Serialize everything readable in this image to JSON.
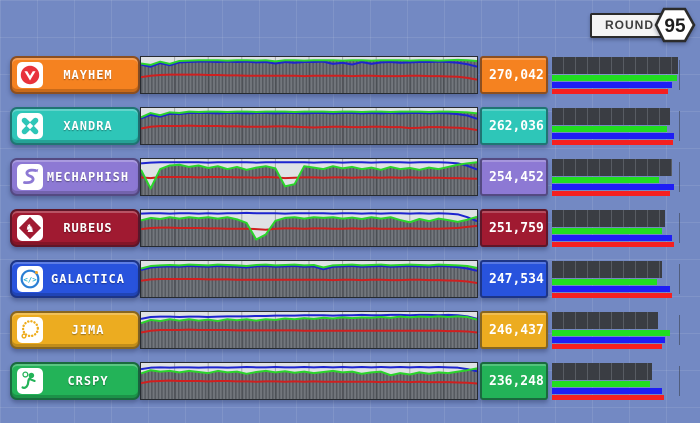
{
  "round_badge": {
    "label": "ROUND",
    "number": "95"
  },
  "colors": {
    "background": "#7389c3",
    "bar_green": "#21dd21",
    "bar_blue": "#1e1ef5",
    "bar_red": "#f52020",
    "chart_line_green": "#2bd42b",
    "chart_line_blue": "#1d24cf",
    "chart_line_red": "#cf1f1f"
  },
  "teams": [
    {
      "name": "MAYHEM",
      "score": "270,042",
      "color": "#f58220",
      "icon": "mayhem-bird-v-icon",
      "bars": {
        "dark": 100,
        "green": 99,
        "blue": 95,
        "red": 92
      },
      "chart": {
        "green": [
          18,
          22,
          13,
          19,
          11,
          10,
          9,
          9,
          9,
          10,
          9,
          9,
          10,
          9,
          12,
          9,
          9,
          10,
          9,
          9,
          9,
          10,
          9,
          9,
          10,
          9,
          9,
          9,
          10,
          9,
          9,
          10,
          9,
          8,
          9,
          11
        ],
        "blue": [
          21,
          27,
          17,
          23,
          15,
          14,
          13,
          13,
          14,
          13,
          14,
          13,
          15,
          14,
          18,
          14,
          16,
          14,
          14,
          13,
          19,
          16,
          21,
          14,
          19,
          15,
          14,
          16,
          15,
          14,
          14,
          13,
          14,
          16,
          20,
          27
        ],
        "red": [
          56,
          52,
          50,
          49,
          49,
          49,
          49,
          50,
          50,
          51,
          51,
          52,
          52,
          52,
          52,
          52,
          52,
          53,
          52,
          52,
          52,
          52,
          53,
          52,
          52,
          53,
          53,
          53,
          52,
          52,
          53,
          53,
          54,
          55,
          58,
          63
        ]
      }
    },
    {
      "name": "XANDRA",
      "score": "262,036",
      "color": "#2ec6b8",
      "icon": "xandra-cross-x-icon",
      "bars": {
        "dark": 94,
        "green": 91,
        "blue": 97,
        "red": 96
      },
      "chart": {
        "green": [
          26,
          14,
          20,
          12,
          14,
          10,
          11,
          10,
          10,
          11,
          10,
          10,
          11,
          10,
          10,
          10,
          11,
          10,
          10,
          10,
          11,
          10,
          10,
          11,
          10,
          10,
          11,
          10,
          10,
          10,
          11,
          10,
          10,
          11,
          12,
          15
        ],
        "blue": [
          29,
          19,
          24,
          16,
          17,
          14,
          14,
          14,
          15,
          14,
          14,
          15,
          14,
          14,
          15,
          14,
          14,
          15,
          14,
          14,
          15,
          14,
          14,
          15,
          14,
          15,
          14,
          15,
          14,
          14,
          15,
          14,
          15,
          17,
          21,
          30
        ],
        "red": [
          57,
          52,
          50,
          50,
          50,
          49,
          50,
          50,
          50,
          51,
          51,
          52,
          52,
          52,
          51,
          51,
          52,
          53,
          54,
          53,
          52,
          52,
          53,
          53,
          52,
          52,
          53,
          53,
          56,
          55,
          53,
          53,
          54,
          55,
          57,
          61
        ]
      }
    },
    {
      "name": "MECHAPHISH",
      "score": "254,452",
      "color": "#8d79d4",
      "icon": "mechaphish-fish-s-icon",
      "bars": {
        "dark": 95,
        "green": 85,
        "blue": 97,
        "red": 94
      },
      "chart": {
        "green": [
          30,
          82,
          28,
          18,
          16,
          22,
          18,
          25,
          20,
          28,
          22,
          30,
          24,
          20,
          26,
          76,
          70,
          20,
          24,
          28,
          20,
          26,
          22,
          28,
          24,
          30,
          22,
          28,
          25,
          30,
          24,
          28,
          22,
          16,
          12,
          9
        ],
        "blue": [
          12,
          10,
          9,
          9,
          9,
          9,
          9,
          10,
          9,
          9,
          9,
          9,
          10,
          9,
          9,
          9,
          9,
          9,
          10,
          9,
          9,
          10,
          9,
          9,
          10,
          9,
          9,
          9,
          10,
          9,
          9,
          9,
          10,
          12,
          19,
          29
        ],
        "red": [
          51,
          53,
          50,
          50,
          50,
          50,
          51,
          50,
          50,
          50,
          51,
          51,
          52,
          50,
          51,
          53,
          52,
          51,
          51,
          52,
          51,
          51,
          52,
          51,
          51,
          52,
          51,
          52,
          51,
          52,
          52,
          52,
          53,
          53,
          54,
          55
        ]
      }
    },
    {
      "name": "RUBEUS",
      "score": "251,759",
      "color": "#a01a31",
      "icon": "rubeus-knight-diamond-icon",
      "bars": {
        "dark": 90,
        "green": 87,
        "blue": 95,
        "red": 97
      },
      "chart": {
        "green": [
          29,
          22,
          25,
          20,
          24,
          20,
          23,
          20,
          24,
          20,
          26,
          36,
          82,
          68,
          30,
          22,
          20,
          24,
          20,
          22,
          20,
          24,
          21,
          25,
          20,
          24,
          20,
          28,
          34,
          25,
          31,
          24,
          28,
          33,
          27,
          19
        ],
        "blue": [
          10,
          9,
          9,
          10,
          9,
          9,
          10,
          9,
          10,
          9,
          9,
          8,
          9,
          9,
          9,
          10,
          9,
          9,
          9,
          9,
          10,
          9,
          9,
          10,
          9,
          10,
          9,
          9,
          10,
          9,
          10,
          9,
          10,
          12,
          20,
          31
        ],
        "red": [
          53,
          50,
          49,
          49,
          50,
          50,
          50,
          51,
          51,
          52,
          52,
          52,
          53,
          55,
          52,
          51,
          51,
          52,
          51,
          51,
          52,
          52,
          51,
          52,
          51,
          52,
          52,
          52,
          51,
          52,
          52,
          52,
          51,
          50,
          47,
          44
        ]
      }
    },
    {
      "name": "GALACTICA",
      "score": "247,534",
      "color": "#2853dd",
      "icon": "galactica-code-circle-icon",
      "bars": {
        "dark": 87,
        "green": 83,
        "blue": 94,
        "red": 95
      },
      "chart": {
        "green": [
          21,
          14,
          12,
          11,
          12,
          10,
          11,
          12,
          10,
          11,
          12,
          14,
          11,
          10,
          12,
          11,
          10,
          12,
          11,
          18,
          12,
          11,
          10,
          12,
          11,
          10,
          12,
          11,
          10,
          11,
          12,
          10,
          11,
          12,
          14,
          19
        ],
        "blue": [
          25,
          18,
          16,
          15,
          16,
          14,
          15,
          16,
          14,
          15,
          16,
          18,
          15,
          14,
          16,
          15,
          14,
          16,
          15,
          23,
          16,
          15,
          14,
          16,
          15,
          14,
          16,
          15,
          14,
          15,
          16,
          14,
          15,
          17,
          21,
          27
        ],
        "red": [
          55,
          51,
          50,
          50,
          50,
          50,
          50,
          51,
          51,
          51,
          52,
          52,
          52,
          52,
          52,
          52,
          52,
          52,
          52,
          52,
          53,
          52,
          52,
          53,
          52,
          52,
          53,
          53,
          52,
          52,
          53,
          53,
          54,
          55,
          57,
          61
        ]
      }
    },
    {
      "name": "JIMA",
      "score": "246,437",
      "color": "#ecac20",
      "icon": "jima-dotted-ring-icon",
      "bars": {
        "dark": 84,
        "green": 94,
        "blue": 90,
        "red": 87
      },
      "chart": {
        "green": [
          31,
          22,
          25,
          20,
          24,
          20,
          24,
          21,
          25,
          20,
          23,
          20,
          24,
          20,
          22,
          18,
          20,
          17,
          19,
          16,
          18,
          15,
          17,
          15,
          16,
          14,
          16,
          13,
          15,
          13,
          14,
          12,
          14,
          12,
          14,
          21
        ],
        "blue": [
          19,
          14,
          13,
          13,
          14,
          13,
          13,
          14,
          13,
          12,
          12,
          12,
          11,
          11,
          10,
          10,
          10,
          9,
          9,
          9,
          10,
          9,
          9,
          8,
          9,
          9,
          8,
          8,
          9,
          8,
          8,
          9,
          8,
          9,
          12,
          19
        ],
        "red": [
          57,
          52,
          50,
          50,
          50,
          49,
          50,
          50,
          50,
          50,
          51,
          51,
          51,
          51,
          51,
          51,
          51,
          52,
          52,
          52,
          52,
          52,
          52,
          52,
          52,
          52,
          52,
          52,
          52,
          52,
          52,
          52,
          53,
          53,
          54,
          57
        ]
      }
    },
    {
      "name": "CRSPY",
      "score": "236,248",
      "color": "#23b358",
      "icon": "crspy-dancer-icon",
      "bars": {
        "dark": 79,
        "green": 78,
        "blue": 87,
        "red": 89
      },
      "chart": {
        "green": [
          29,
          20,
          24,
          22,
          26,
          22,
          25,
          28,
          22,
          26,
          24,
          30,
          25,
          22,
          26,
          23,
          27,
          24,
          28,
          25,
          22,
          26,
          24,
          30,
          26,
          24,
          34,
          28,
          32,
          26,
          30,
          26,
          28,
          24,
          20,
          15
        ],
        "blue": [
          17,
          13,
          12,
          13,
          12,
          12,
          13,
          12,
          12,
          13,
          12,
          11,
          12,
          12,
          11,
          12,
          12,
          11,
          12,
          11,
          12,
          11,
          12,
          11,
          12,
          11,
          12,
          11,
          12,
          11,
          12,
          11,
          12,
          13,
          17,
          23
        ],
        "red": [
          56,
          51,
          50,
          49,
          50,
          50,
          50,
          51,
          50,
          50,
          51,
          51,
          52,
          51,
          51,
          52,
          51,
          52,
          51,
          52,
          52,
          52,
          52,
          52,
          52,
          53,
          52,
          52,
          53,
          52,
          53,
          53,
          53,
          54,
          55,
          57
        ]
      }
    }
  ]
}
